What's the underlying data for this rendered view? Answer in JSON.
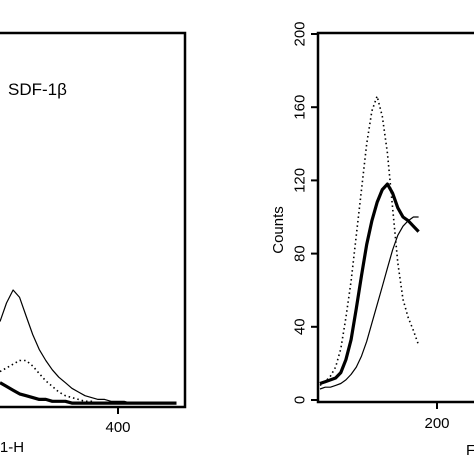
{
  "chart_data": [
    {
      "type": "line",
      "title": "",
      "annotation": "SDF-1β",
      "xlabel": "1-H",
      "ylabel": "",
      "xlim": [
        0,
        560
      ],
      "ylim": [
        0,
        200
      ],
      "xticks": [
        400
      ],
      "xtick_labels": [
        "400"
      ],
      "yticks": [],
      "x": [
        0,
        20,
        40,
        60,
        80,
        100,
        120,
        140,
        160,
        180,
        200,
        220,
        240,
        260,
        280,
        300,
        320,
        340,
        360,
        380,
        400,
        420,
        440,
        460,
        480,
        500,
        520,
        540
      ],
      "series": [
        {
          "style": "thin-solid",
          "values": [
            45,
            55,
            62,
            58,
            48,
            38,
            30,
            24,
            19,
            15,
            12,
            9,
            7,
            5,
            4,
            3,
            3,
            2,
            2,
            2,
            1,
            1,
            1,
            1,
            1,
            1,
            1,
            1
          ]
        },
        {
          "style": "dotted",
          "values": [
            18,
            20,
            22,
            24,
            24,
            21,
            17,
            13,
            10,
            7,
            5,
            4,
            3,
            2,
            2,
            1,
            1,
            1,
            1,
            1,
            1,
            1,
            1,
            1,
            1,
            1,
            1,
            1
          ]
        },
        {
          "style": "thick-solid",
          "values": [
            12,
            10,
            8,
            6,
            5,
            4,
            3,
            3,
            2,
            2,
            2,
            1,
            1,
            1,
            1,
            1,
            1,
            1,
            1,
            1,
            1,
            1,
            1,
            1,
            1,
            1,
            1,
            1
          ]
        }
      ]
    },
    {
      "type": "line",
      "title": "",
      "xlabel": "F",
      "ylabel": "Counts",
      "xlim": [
        80,
        400
      ],
      "ylim": [
        0,
        200
      ],
      "xticks": [
        200
      ],
      "xtick_labels": [
        "200"
      ],
      "yticks": [
        0,
        40,
        80,
        120,
        160,
        200
      ],
      "ytick_labels": [
        "0",
        "40",
        "80",
        "120",
        "160",
        "200"
      ],
      "x": [
        80,
        90,
        100,
        110,
        120,
        130,
        140,
        150,
        160,
        170,
        180,
        190,
        200,
        210,
        220,
        230,
        240,
        250,
        260,
        270
      ],
      "series": [
        {
          "style": "dotted",
          "values": [
            8,
            10,
            13,
            18,
            28,
            45,
            65,
            90,
            115,
            140,
            158,
            166,
            155,
            135,
            105,
            75,
            55,
            45,
            38,
            30
          ]
        },
        {
          "style": "thick-solid",
          "values": [
            9,
            10,
            11,
            12,
            15,
            22,
            33,
            50,
            68,
            85,
            98,
            108,
            115,
            118,
            113,
            105,
            100,
            98,
            95,
            92
          ]
        },
        {
          "style": "thin-solid",
          "values": [
            6,
            7,
            7,
            8,
            9,
            11,
            14,
            18,
            24,
            32,
            42,
            52,
            62,
            72,
            82,
            90,
            95,
            98,
            100,
            100
          ]
        }
      ]
    }
  ]
}
